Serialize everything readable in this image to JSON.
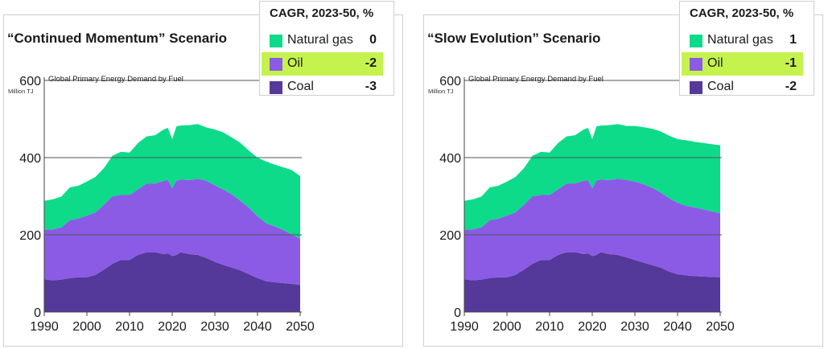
{
  "colors": {
    "natural_gas": "#0ddb8a",
    "oil": "#8b5be6",
    "coal": "#55399a",
    "highlight": "#c6f24e",
    "grid": "#555555"
  },
  "chart_data": [
    {
      "type": "area",
      "title": "“Continued Momentum” Scenario",
      "subtitle": "Global Primary Energy Demand by Fuel",
      "ylabel": "Million TJ",
      "ylim": [
        0,
        600
      ],
      "yticks": [
        0,
        200,
        400,
        600
      ],
      "xticks": [
        1990,
        2000,
        2010,
        2020,
        2030,
        2040,
        2050
      ],
      "xlim": [
        1990,
        2050
      ],
      "stacked": true,
      "x": [
        1990,
        1992,
        1994,
        1996,
        1998,
        2000,
        2002,
        2004,
        2006,
        2008,
        2010,
        2012,
        2014,
        2016,
        2018,
        2019,
        2020,
        2021,
        2022,
        2024,
        2026,
        2028,
        2030,
        2032,
        2034,
        2036,
        2038,
        2040,
        2042,
        2044,
        2046,
        2048,
        2050
      ],
      "series": [
        {
          "name": "Coal",
          "values": [
            85,
            82,
            84,
            88,
            90,
            90,
            96,
            110,
            125,
            135,
            135,
            148,
            155,
            155,
            150,
            152,
            145,
            148,
            155,
            150,
            148,
            140,
            130,
            122,
            115,
            108,
            98,
            88,
            80,
            77,
            75,
            73,
            70
          ]
        },
        {
          "name": "Oil",
          "values": [
            128,
            132,
            135,
            150,
            152,
            160,
            162,
            168,
            175,
            168,
            168,
            170,
            178,
            178,
            190,
            190,
            175,
            193,
            188,
            192,
            197,
            200,
            198,
            195,
            190,
            180,
            172,
            160,
            150,
            145,
            138,
            128,
            120
          ]
        },
        {
          "name": "Natural gas",
          "values": [
            75,
            78,
            80,
            85,
            85,
            88,
            92,
            95,
            105,
            112,
            110,
            120,
            122,
            125,
            133,
            135,
            128,
            140,
            140,
            142,
            142,
            138,
            145,
            148,
            147,
            150,
            148,
            152,
            160,
            160,
            162,
            167,
            162
          ]
        }
      ],
      "legend": {
        "title": "CAGR, 2023-50, %",
        "items": [
          {
            "name": "Natural gas",
            "value": "0",
            "highlight": false
          },
          {
            "name": "Oil",
            "value": "-2",
            "highlight": true
          },
          {
            "name": "Coal",
            "value": "-3",
            "highlight": false
          }
        ]
      }
    },
    {
      "type": "area",
      "title": "“Slow Evolution” Scenario",
      "subtitle": "Global Primary Energy Demand by Fuel",
      "ylabel": "Million TJ",
      "ylim": [
        0,
        600
      ],
      "yticks": [
        0,
        200,
        400,
        600
      ],
      "xticks": [
        1990,
        2000,
        2010,
        2020,
        2030,
        2040,
        2050
      ],
      "xlim": [
        1990,
        2050
      ],
      "stacked": true,
      "x": [
        1990,
        1992,
        1994,
        1996,
        1998,
        2000,
        2002,
        2004,
        2006,
        2008,
        2010,
        2012,
        2014,
        2016,
        2018,
        2019,
        2020,
        2021,
        2022,
        2024,
        2026,
        2028,
        2030,
        2032,
        2034,
        2036,
        2038,
        2040,
        2042,
        2044,
        2046,
        2048,
        2050
      ],
      "series": [
        {
          "name": "Coal",
          "values": [
            85,
            82,
            84,
            88,
            90,
            90,
            96,
            110,
            125,
            135,
            135,
            148,
            155,
            155,
            150,
            152,
            145,
            148,
            155,
            150,
            148,
            142,
            135,
            128,
            122,
            115,
            105,
            98,
            95,
            93,
            92,
            91,
            90
          ]
        },
        {
          "name": "Oil",
          "values": [
            128,
            132,
            135,
            150,
            152,
            160,
            162,
            168,
            175,
            168,
            168,
            170,
            178,
            178,
            190,
            190,
            175,
            193,
            188,
            192,
            197,
            200,
            203,
            203,
            200,
            195,
            190,
            185,
            180,
            178,
            174,
            170,
            166
          ]
        },
        {
          "name": "Natural gas",
          "values": [
            75,
            78,
            80,
            85,
            85,
            88,
            92,
            95,
            105,
            112,
            110,
            120,
            122,
            125,
            133,
            135,
            128,
            140,
            140,
            142,
            142,
            140,
            144,
            148,
            153,
            158,
            162,
            165,
            170,
            170,
            172,
            174,
            176
          ]
        }
      ],
      "legend": {
        "title": "CAGR, 2023-50, %",
        "items": [
          {
            "name": "Natural gas",
            "value": "1",
            "highlight": false
          },
          {
            "name": "Oil",
            "value": "-1",
            "highlight": true
          },
          {
            "name": "Coal",
            "value": "-2",
            "highlight": false
          }
        ]
      }
    }
  ]
}
